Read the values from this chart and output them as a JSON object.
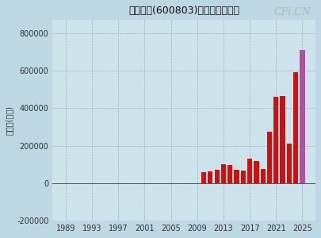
{
  "title": "新奥股份(600803)净利润（万元）",
  "ylabel": "净利润(万元)",
  "background_color": "#bdd8e4",
  "plot_bg_color": "#cce3ec",
  "years": [
    1989,
    1990,
    1991,
    1992,
    1993,
    1994,
    1995,
    1996,
    1997,
    1998,
    1999,
    2000,
    2001,
    2002,
    2003,
    2004,
    2005,
    2006,
    2007,
    2008,
    2009,
    2010,
    2011,
    2012,
    2013,
    2014,
    2015,
    2016,
    2017,
    2018,
    2019,
    2020,
    2021,
    2022,
    2023,
    2024,
    2025
  ],
  "values": [
    500,
    600,
    800,
    1000,
    1500,
    1200,
    1500,
    1200,
    1000,
    800,
    900,
    700,
    500,
    400,
    300,
    200,
    200,
    150,
    300,
    -800,
    100,
    60000,
    65000,
    70000,
    100000,
    95000,
    72000,
    68000,
    130000,
    120000,
    75000,
    275000,
    460000,
    465000,
    210000,
    590000,
    710000
  ],
  "bar_color_main": "#cc1111",
  "bar_color_last": "#aa5599",
  "ylim": [
    -200000,
    870000
  ],
  "yticks": [
    -200000,
    0,
    200000,
    400000,
    600000,
    800000
  ],
  "xticks": [
    1989,
    1993,
    1997,
    2001,
    2005,
    2009,
    2013,
    2017,
    2021,
    2025
  ],
  "xlim": [
    1987.0,
    2027.0
  ],
  "grid_color": "#999999",
  "watermark": "CFi.CN",
  "watermark_color": "#b0b8b8",
  "title_fontsize": 9,
  "tick_fontsize": 7,
  "ylabel_fontsize": 7
}
